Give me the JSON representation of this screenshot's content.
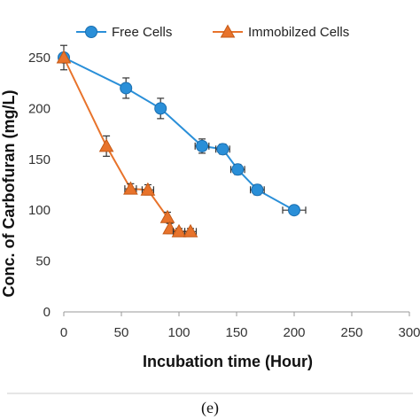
{
  "chart_data": {
    "type": "line",
    "xlabel": "Incubation time (Hour)",
    "ylabel": "Conc. of Carbofuran (mg/L)",
    "xlim": [
      0,
      300
    ],
    "ylim": [
      0,
      250
    ],
    "xticks": [
      0,
      50,
      100,
      150,
      200,
      250,
      300
    ],
    "yticks": [
      0,
      50,
      100,
      150,
      200,
      250
    ],
    "grid": false,
    "legend_position": "top",
    "series": [
      {
        "name": "Free Cells",
        "color": "#2a8fd8",
        "marker": "circle",
        "x": [
          0,
          54,
          84,
          120,
          138,
          151,
          168,
          200
        ],
        "y": [
          250,
          220,
          200,
          163,
          160,
          140,
          120,
          100
        ],
        "yerr": [
          0,
          10,
          10,
          7,
          5,
          5,
          5,
          3
        ],
        "xerr": [
          0,
          0,
          0,
          6,
          6,
          6,
          6,
          10
        ]
      },
      {
        "name": "Immobilzed Cells",
        "color": "#e8732b",
        "marker": "triangle",
        "x": [
          0,
          37,
          58,
          73,
          90,
          92,
          100,
          110
        ],
        "y": [
          250,
          163,
          121,
          120,
          93,
          82,
          79,
          79
        ],
        "yerr": [
          12,
          10,
          5,
          5,
          5,
          5,
          3,
          3
        ],
        "xerr": [
          0,
          0,
          5,
          5,
          0,
          0,
          5,
          5
        ]
      }
    ]
  },
  "caption": "(e)"
}
